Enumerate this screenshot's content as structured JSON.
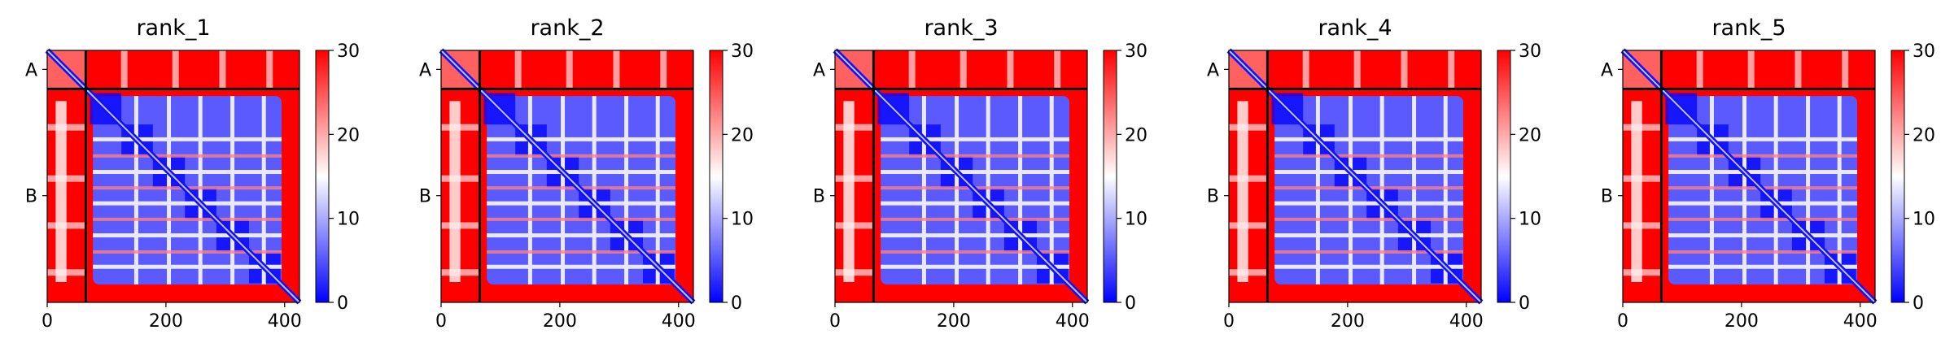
{
  "figure": {
    "colormap": "bwr",
    "colors": {
      "low": "#0000ff",
      "mid": "#ffffff",
      "high": "#ff0000",
      "divider": "#000000"
    }
  },
  "chart_data": [
    {
      "type": "heatmap",
      "title": "rank_1",
      "xlabel": "",
      "ylabel": "",
      "x_ticks": [
        0,
        200,
        400
      ],
      "xlim": [
        0,
        425
      ],
      "ylim": [
        425,
        0
      ],
      "y_tick_labels": [
        {
          "label": "A",
          "position": 32
        },
        {
          "label": "B",
          "position": 245
        }
      ],
      "chain_boundary": 65,
      "colorbar": {
        "min": 0,
        "max": 30,
        "ticks": [
          0,
          10,
          20,
          30
        ]
      }
    },
    {
      "type": "heatmap",
      "title": "rank_2",
      "xlabel": "",
      "ylabel": "",
      "x_ticks": [
        0,
        200,
        400
      ],
      "xlim": [
        0,
        425
      ],
      "ylim": [
        425,
        0
      ],
      "y_tick_labels": [
        {
          "label": "A",
          "position": 32
        },
        {
          "label": "B",
          "position": 245
        }
      ],
      "chain_boundary": 65,
      "colorbar": {
        "min": 0,
        "max": 30,
        "ticks": [
          0,
          10,
          20,
          30
        ]
      }
    },
    {
      "type": "heatmap",
      "title": "rank_3",
      "xlabel": "",
      "ylabel": "",
      "x_ticks": [
        0,
        200,
        400
      ],
      "xlim": [
        0,
        425
      ],
      "ylim": [
        425,
        0
      ],
      "y_tick_labels": [
        {
          "label": "A",
          "position": 32
        },
        {
          "label": "B",
          "position": 245
        }
      ],
      "chain_boundary": 65,
      "colorbar": {
        "min": 0,
        "max": 30,
        "ticks": [
          0,
          10,
          20,
          30
        ]
      }
    },
    {
      "type": "heatmap",
      "title": "rank_4",
      "xlabel": "",
      "ylabel": "",
      "x_ticks": [
        0,
        200,
        400
      ],
      "xlim": [
        0,
        425
      ],
      "ylim": [
        425,
        0
      ],
      "y_tick_labels": [
        {
          "label": "A",
          "position": 32
        },
        {
          "label": "B",
          "position": 245
        }
      ],
      "chain_boundary": 65,
      "colorbar": {
        "min": 0,
        "max": 30,
        "ticks": [
          0,
          10,
          20,
          30
        ]
      }
    },
    {
      "type": "heatmap",
      "title": "rank_5",
      "xlabel": "",
      "ylabel": "",
      "x_ticks": [
        0,
        200,
        400
      ],
      "xlim": [
        0,
        425
      ],
      "ylim": [
        425,
        0
      ],
      "y_tick_labels": [
        {
          "label": "A",
          "position": 32
        },
        {
          "label": "B",
          "position": 245
        }
      ],
      "chain_boundary": 65,
      "colorbar": {
        "min": 0,
        "max": 30,
        "ticks": [
          0,
          10,
          20,
          30
        ]
      }
    }
  ]
}
